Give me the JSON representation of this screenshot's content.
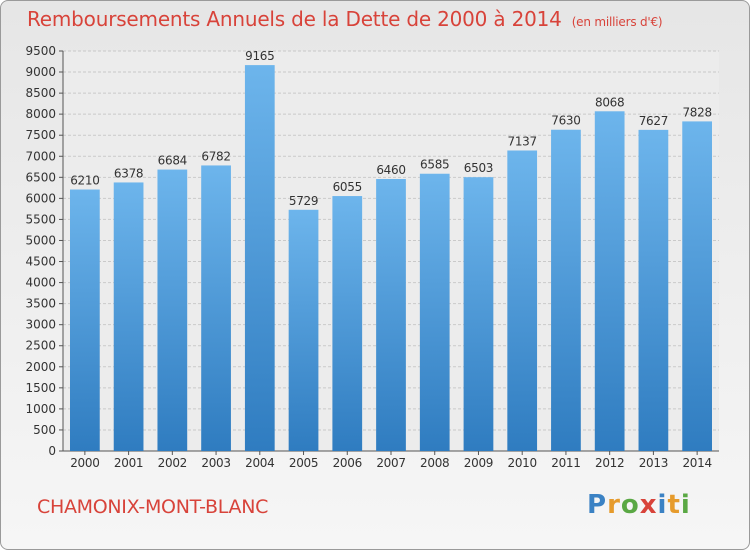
{
  "header": {
    "title": "Remboursements Annuels de la Dette de 2000 à 2014",
    "subtitle": "(en milliers d'€)"
  },
  "footer": {
    "commune": "CHAMONIX-MONT-BLANC"
  },
  "logo": {
    "letters": [
      "P",
      "r",
      "o",
      "x",
      "i",
      "t",
      "i"
    ],
    "colors": [
      "#3b82c4",
      "#e69b2c",
      "#5aa844",
      "#d8433a",
      "#3b82c4",
      "#e69b2c",
      "#5aa844"
    ]
  },
  "colors": {
    "bar": "#4f9fde",
    "bar_light": "#6db5ec",
    "bar_dark": "#2f7cc0",
    "title": "#d8433a",
    "grid": "#c9c9c9"
  },
  "chart_data": {
    "type": "bar",
    "categories": [
      "2000",
      "2001",
      "2002",
      "2003",
      "2004",
      "2005",
      "2006",
      "2007",
      "2008",
      "2009",
      "2010",
      "2011",
      "2012",
      "2013",
      "2014"
    ],
    "values": [
      6210,
      6378,
      6684,
      6782,
      9165,
      5729,
      6055,
      6460,
      6585,
      6503,
      7137,
      7630,
      8068,
      7627,
      7828
    ],
    "ylim": [
      0,
      9500
    ],
    "yticks": [
      0,
      500,
      1000,
      1500,
      2000,
      2500,
      3000,
      3500,
      4000,
      4500,
      5000,
      5500,
      6000,
      6500,
      7000,
      7500,
      8000,
      8500,
      9000,
      9500
    ],
    "grid": true,
    "xlabel": "",
    "ylabel": ""
  }
}
